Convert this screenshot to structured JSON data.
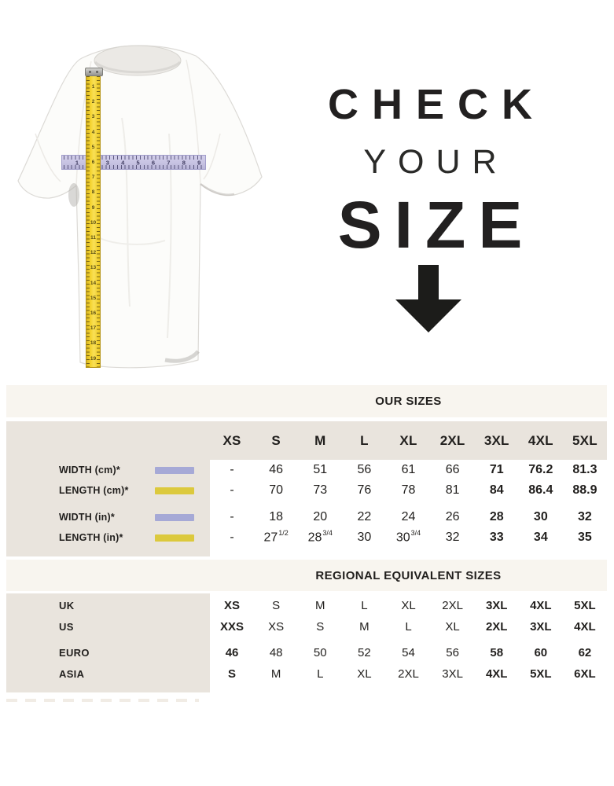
{
  "hero": {
    "line1": "CHECK",
    "line2": "YOUR",
    "line3": "SIZE",
    "arrow_icon": "down-arrow"
  },
  "measuring": {
    "vertical_tape_numbers": [
      1,
      2,
      3,
      4,
      5,
      6,
      7,
      8,
      9,
      10,
      11,
      12,
      13,
      14,
      15,
      16,
      17,
      18,
      19
    ],
    "horizontal_ruler_numbers": [
      1,
      2,
      3,
      4,
      5,
      6,
      7,
      8,
      9
    ],
    "tape_color": "#f2d02b",
    "ruler_color": "#c9c5e3"
  },
  "our_sizes": {
    "title": "OUR SIZES",
    "columns": [
      "XS",
      "S",
      "M",
      "L",
      "XL",
      "2XL",
      "3XL",
      "4XL",
      "5XL"
    ],
    "rows": [
      {
        "label": "WIDTH (cm)*",
        "swatch_color": "#a6a9d6",
        "values": [
          "-",
          "46",
          "51",
          "56",
          "61",
          "66",
          "71",
          "76.2",
          "81.3"
        ],
        "bold_indices": [
          6,
          7,
          8
        ]
      },
      {
        "label": "LENGTH (cm)*",
        "swatch_color": "#dcc93d",
        "values": [
          "-",
          "70",
          "73",
          "76",
          "78",
          "81",
          "84",
          "86.4",
          "88.9"
        ],
        "bold_indices": [
          6,
          7,
          8
        ]
      },
      {
        "label": "WIDTH (in)*",
        "swatch_color": "#a6a9d6",
        "values": [
          "-",
          "18",
          "20",
          "22",
          "24",
          "26",
          "28",
          "30",
          "32"
        ],
        "bold_indices": [
          6,
          7,
          8
        ]
      },
      {
        "label": "LENGTH (in)*",
        "swatch_color": "#dcc93d",
        "values": [
          "-",
          "27 1/2",
          "28 3/4",
          "30",
          "30 3/4",
          "32",
          "33",
          "34",
          "35"
        ],
        "bold_indices": [
          6,
          7,
          8
        ]
      }
    ]
  },
  "regional": {
    "title": "REGIONAL EQUIVALENT SIZES",
    "rows": [
      {
        "label": "UK",
        "values": [
          "XS",
          "S",
          "M",
          "L",
          "XL",
          "2XL",
          "3XL",
          "4XL",
          "5XL"
        ],
        "bold_indices": [
          0,
          6,
          7,
          8
        ]
      },
      {
        "label": "US",
        "values": [
          "XXS",
          "XS",
          "S",
          "M",
          "L",
          "XL",
          "2XL",
          "3XL",
          "4XL"
        ],
        "bold_indices": [
          0,
          6,
          7,
          8
        ]
      },
      {
        "label": "EURO",
        "values": [
          "46",
          "48",
          "50",
          "52",
          "54",
          "56",
          "58",
          "60",
          "62"
        ],
        "bold_indices": [
          0,
          6,
          7,
          8
        ]
      },
      {
        "label": "ASIA",
        "values": [
          "S",
          "M",
          "L",
          "XL",
          "2XL",
          "3XL",
          "4XL",
          "5XL",
          "6XL"
        ],
        "bold_indices": [
          0,
          6,
          7,
          8
        ]
      }
    ]
  },
  "colors": {
    "cream_band": "#f8f5ef",
    "beige_panel": "#e9e4dd",
    "text": "#211f1d",
    "white": "#ffffff",
    "swatch_lavender": "#a6a9d6",
    "swatch_yellow": "#dcc93d"
  }
}
